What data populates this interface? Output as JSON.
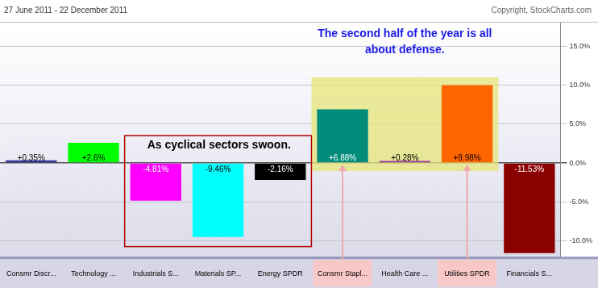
{
  "chart_data": {
    "type": "bar",
    "title": "27 June 2011 - 22 December 2011",
    "subtitle": "Copyright, StockCharts.com",
    "annotations": [
      "The second half of the year is all about defense.",
      "As cyclical sectors swoon."
    ],
    "categories": [
      "Consmr Discr...",
      "Technology ...",
      "Industrials S...",
      "Materials SP...",
      "Energy SPDR",
      "Consmr Stapl...",
      "Health Care ...",
      "Utilities SPDR",
      "Financials S..."
    ],
    "values": [
      0.35,
      2.6,
      -4.81,
      -9.46,
      -2.16,
      6.88,
      0.28,
      9.98,
      -11.53
    ],
    "value_labels": [
      "+0.35%",
      "+2.6%",
      "-4.81%",
      "-9.46%",
      "-2.16%",
      "+6.88%",
      "+0.28%",
      "+9.98%",
      "-11.53%"
    ],
    "colors": [
      "#333399",
      "#00ff00",
      "#ff00ff",
      "#00ffff",
      "#000000",
      "#008b7b",
      "#993399",
      "#ff6600",
      "#8b0000"
    ],
    "ylim": [
      -12,
      18
    ],
    "yticks": [
      {
        "value": -10,
        "label": "-10.0%"
      },
      {
        "value": -5,
        "label": "-5.0%"
      },
      {
        "value": 0,
        "label": "0.0%"
      },
      {
        "value": 5,
        "label": "5.0%"
      },
      {
        "value": 10,
        "label": "10.0%"
      },
      {
        "value": 15,
        "label": "15.0%"
      }
    ],
    "grid": true,
    "data_labels": true
  }
}
